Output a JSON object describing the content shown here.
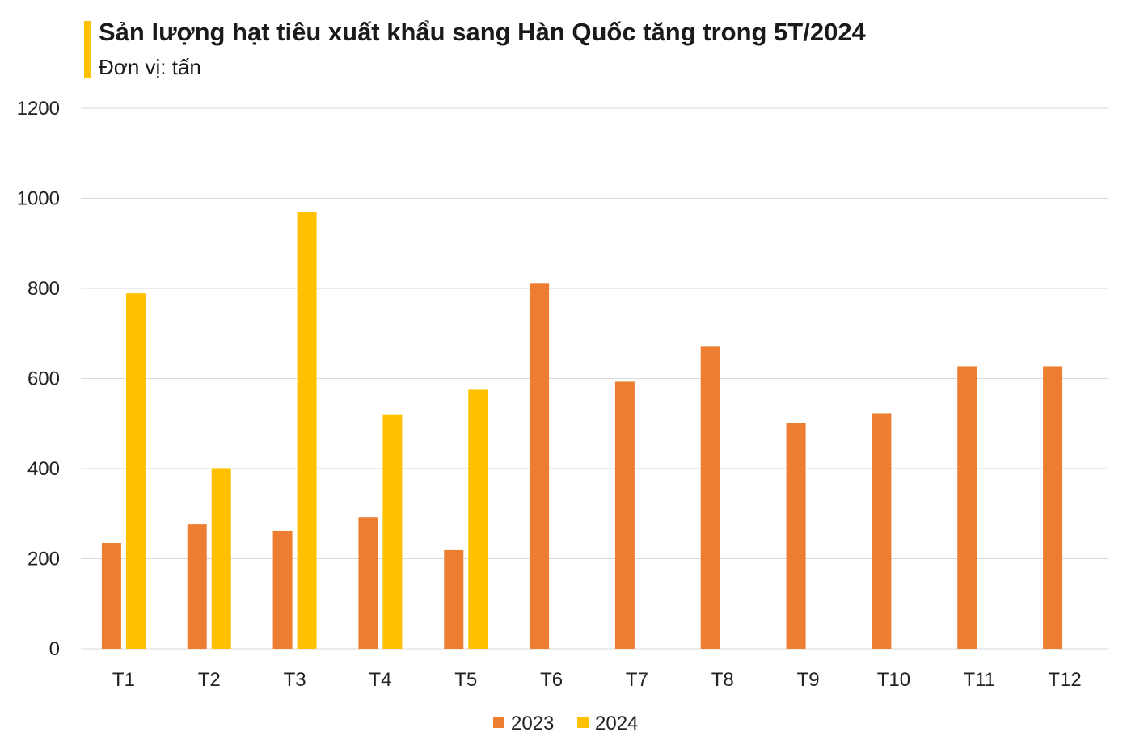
{
  "header": {
    "title": "Sản lượng hạt tiêu xuất khẩu sang Hàn Quốc tăng trong 5T/2024",
    "subtitle": "Đơn vị: tấn"
  },
  "colors": {
    "accent": "#FFC000",
    "series_2023": "#ED7D31",
    "series_2024": "#FFC000",
    "gridline": "#D9D9D9"
  },
  "chart_data": {
    "type": "bar",
    "title": "Sản lượng hạt tiêu xuất khẩu sang Hàn Quốc tăng trong 5T/2024",
    "subtitle": "Đơn vị: tấn",
    "categories": [
      "T1",
      "T2",
      "T3",
      "T4",
      "T5",
      "T6",
      "T7",
      "T8",
      "T9",
      "T10",
      "T11",
      "T12"
    ],
    "series": [
      {
        "name": "2023",
        "color": "#ED7D31",
        "values": [
          235,
          276,
          262,
          292,
          219,
          812,
          593,
          672,
          501,
          523,
          627,
          627
        ]
      },
      {
        "name": "2024",
        "color": "#FFC000",
        "values": [
          789,
          401,
          970,
          519,
          575,
          null,
          null,
          null,
          null,
          null,
          null,
          null
        ]
      }
    ],
    "yticks": [
      0,
      200,
      400,
      600,
      800,
      1000,
      1200
    ],
    "ylim": [
      0,
      1200
    ],
    "xlabel": "",
    "ylabel": "",
    "grid": true,
    "legend_position": "bottom"
  }
}
